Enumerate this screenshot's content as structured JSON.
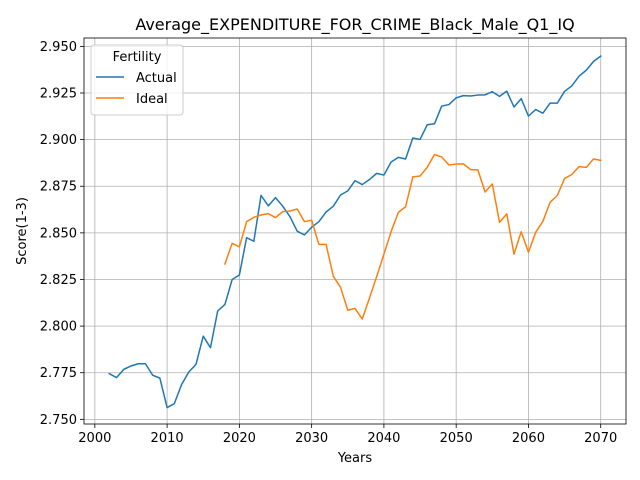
{
  "chart_data": {
    "type": "line",
    "title": "Average_EXPENDITURE_FOR_CRIME_Black_Male_Q1_IQ",
    "xlabel": "Years",
    "ylabel": "Score(1-3)",
    "xlim": [
      1998.5,
      2073.5
    ],
    "ylim": [
      2.7475,
      2.9545
    ],
    "xticks": [
      2000,
      2010,
      2020,
      2030,
      2040,
      2050,
      2060,
      2070
    ],
    "xtick_labels": [
      "2000",
      "2010",
      "2020",
      "2030",
      "2040",
      "2050",
      "2060",
      "2070"
    ],
    "yticks": [
      2.75,
      2.775,
      2.8,
      2.825,
      2.85,
      2.875,
      2.9,
      2.925,
      2.95
    ],
    "ytick_labels": [
      "2.750",
      "2.775",
      "2.800",
      "2.825",
      "2.850",
      "2.875",
      "2.900",
      "2.925",
      "2.950"
    ],
    "grid": true,
    "legend": {
      "title": "Fertility",
      "position": "top-left"
    },
    "series": [
      {
        "name": "Actual",
        "color": "#1f77b4",
        "x": [
          2002,
          2003,
          2004,
          2005,
          2006,
          2007,
          2008,
          2009,
          2010,
          2011,
          2012,
          2013,
          2014,
          2015,
          2016,
          2017,
          2018,
          2019,
          2020,
          2021,
          2022,
          2023,
          2024,
          2025,
          2026,
          2027,
          2028,
          2029,
          2030,
          2031,
          2032,
          2033,
          2034,
          2035,
          2036,
          2037,
          2038,
          2039,
          2040,
          2041,
          2042,
          2043,
          2044,
          2045,
          2046,
          2047,
          2048,
          2049,
          2050,
          2051,
          2052,
          2053,
          2054,
          2055,
          2056,
          2057,
          2058,
          2059,
          2060,
          2061,
          2062,
          2063,
          2064,
          2065,
          2066,
          2067,
          2068,
          2069,
          2070
        ],
        "y": [
          2.7745,
          2.7724,
          2.7768,
          2.7786,
          2.7798,
          2.7798,
          2.7737,
          2.7721,
          2.7563,
          2.7584,
          2.7686,
          2.7754,
          2.7795,
          2.7946,
          2.7884,
          2.8081,
          2.8116,
          2.825,
          2.8274,
          2.8474,
          2.8455,
          2.8701,
          2.8645,
          2.8689,
          2.8643,
          2.8587,
          2.8509,
          2.8489,
          2.853,
          2.856,
          2.8612,
          2.8643,
          2.8703,
          2.8725,
          2.878,
          2.8759,
          2.8786,
          2.8819,
          2.881,
          2.888,
          2.8905,
          2.8896,
          2.9009,
          2.9001,
          2.908,
          2.9085,
          2.918,
          2.9188,
          2.9224,
          2.9236,
          2.9234,
          2.9239,
          2.924,
          2.9257,
          2.9232,
          2.926,
          2.9175,
          2.922,
          2.9126,
          2.9161,
          2.9142,
          2.9196,
          2.9196,
          2.9259,
          2.9288,
          2.934,
          2.9372,
          2.9419,
          2.9448
        ]
      },
      {
        "name": "Ideal",
        "color": "#ff7f0e",
        "x": [
          2018,
          2019,
          2020,
          2021,
          2022,
          2023,
          2024,
          2025,
          2026,
          2027,
          2028,
          2029,
          2030,
          2031,
          2032,
          2033,
          2034,
          2035,
          2036,
          2037,
          2038,
          2039,
          2040,
          2041,
          2042,
          2043,
          2044,
          2045,
          2046,
          2047,
          2048,
          2049,
          2050,
          2051,
          2052,
          2053,
          2054,
          2055,
          2056,
          2057,
          2058,
          2059,
          2060,
          2061,
          2062,
          2063,
          2064,
          2065,
          2066,
          2067,
          2068,
          2069,
          2070
        ],
        "y": [
          2.8333,
          2.8444,
          2.8425,
          2.856,
          2.8583,
          2.8596,
          2.8603,
          2.8582,
          2.8614,
          2.8617,
          2.8628,
          2.856,
          2.8568,
          2.8438,
          2.8438,
          2.8267,
          2.8208,
          2.8085,
          2.8095,
          2.8038,
          2.815,
          2.8266,
          2.8386,
          2.8507,
          2.861,
          2.864,
          2.88,
          2.8805,
          2.8852,
          2.892,
          2.8907,
          2.8864,
          2.8869,
          2.887,
          2.8839,
          2.8838,
          2.8719,
          2.8762,
          2.8556,
          2.8602,
          2.8386,
          2.8506,
          2.8396,
          2.8503,
          2.8562,
          2.8664,
          2.8701,
          2.8792,
          2.8813,
          2.8855,
          2.8851,
          2.8896,
          2.8889
        ]
      }
    ]
  }
}
